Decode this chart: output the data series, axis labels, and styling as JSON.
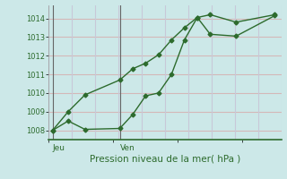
{
  "xlabel": "Pression niveau de la mer( hPa )",
  "bg_color": "#cce8e8",
  "grid_color_h": "#d4b8b8",
  "grid_color_v": "#c8c8d8",
  "line_color": "#2d6b2d",
  "ylim": [
    1007.5,
    1014.7
  ],
  "yticks": [
    1008,
    1009,
    1010,
    1011,
    1012,
    1013,
    1014
  ],
  "xlim": [
    0,
    18
  ],
  "jeu_x": 0.3,
  "ven_x": 5.5,
  "vline_jeu": 0.3,
  "vline_ven": 5.5,
  "series1_x": [
    0.3,
    1.5,
    2.8,
    5.5,
    6.5,
    7.5,
    8.5,
    9.5,
    10.5,
    11.5,
    12.5,
    14.5,
    17.5
  ],
  "series1_y": [
    1008.0,
    1008.5,
    1008.05,
    1008.1,
    1008.85,
    1009.85,
    1010.0,
    1011.0,
    1012.85,
    1014.05,
    1014.2,
    1013.8,
    1014.2
  ],
  "series2_x": [
    0.3,
    1.5,
    2.8,
    5.5,
    6.5,
    7.5,
    8.5,
    9.5,
    10.5,
    11.5,
    12.5,
    14.5,
    17.5
  ],
  "series2_y": [
    1008.0,
    1009.0,
    1009.9,
    1010.7,
    1011.3,
    1011.6,
    1012.05,
    1012.85,
    1013.5,
    1014.05,
    1013.15,
    1013.05,
    1014.15
  ]
}
